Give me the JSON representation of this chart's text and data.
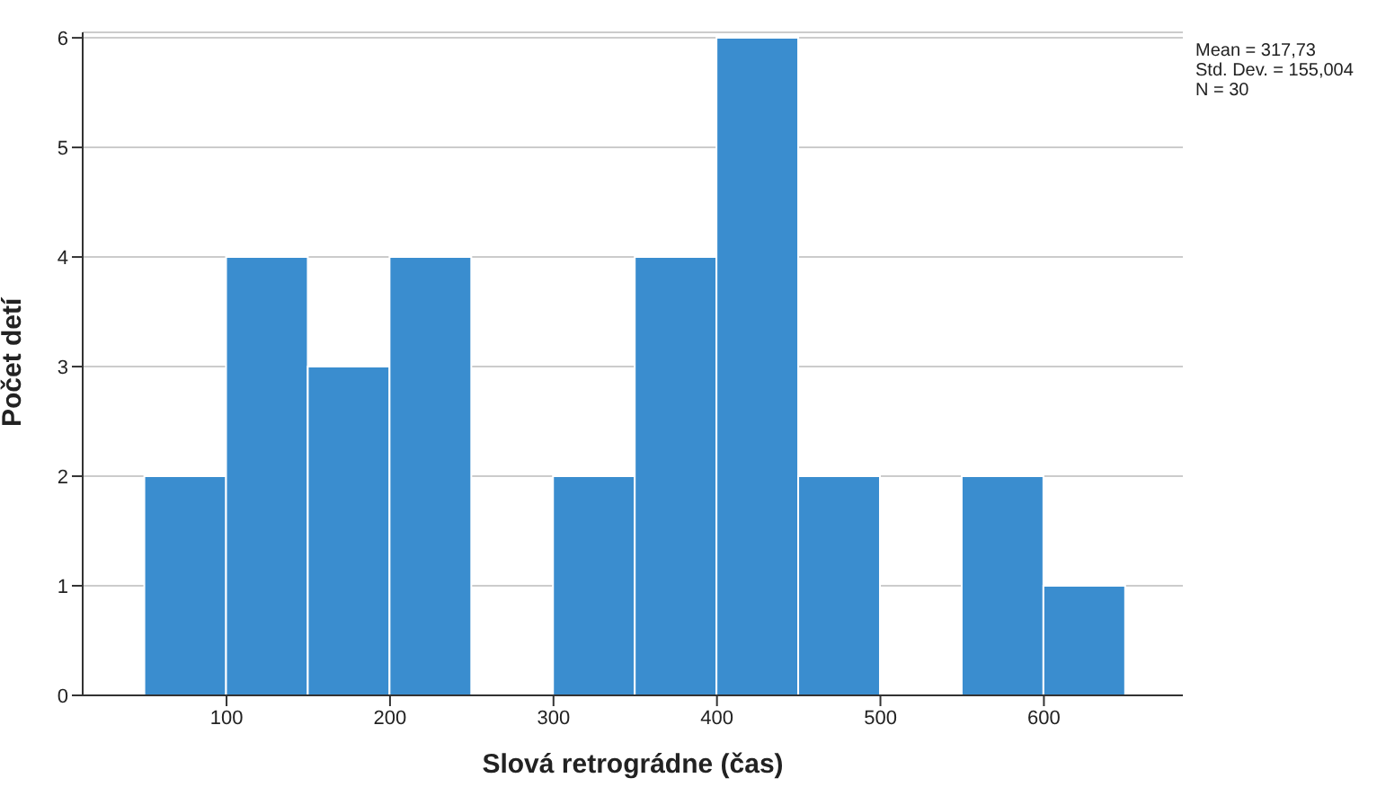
{
  "chart_data": {
    "type": "histogram",
    "xlabel": "Slová retrográdne (čas)",
    "ylabel": "Počet detí",
    "bins": [
      50,
      100,
      150,
      200,
      250,
      300,
      350,
      400,
      450,
      500,
      550,
      600,
      650
    ],
    "values": [
      2,
      4,
      3,
      4,
      0,
      2,
      4,
      6,
      2,
      0,
      2,
      1
    ],
    "color": "#3a8dcf",
    "xlim": [
      12,
      685
    ],
    "xticks": [
      100,
      200,
      300,
      400,
      500,
      600
    ],
    "ylim": [
      0,
      6.05
    ],
    "yticks": [
      0,
      1,
      2,
      3,
      4,
      5,
      6
    ],
    "grid": "y",
    "annotations": [
      "Mean = 317,73",
      "Std. Dev. = 155,004",
      "N = 30"
    ]
  }
}
